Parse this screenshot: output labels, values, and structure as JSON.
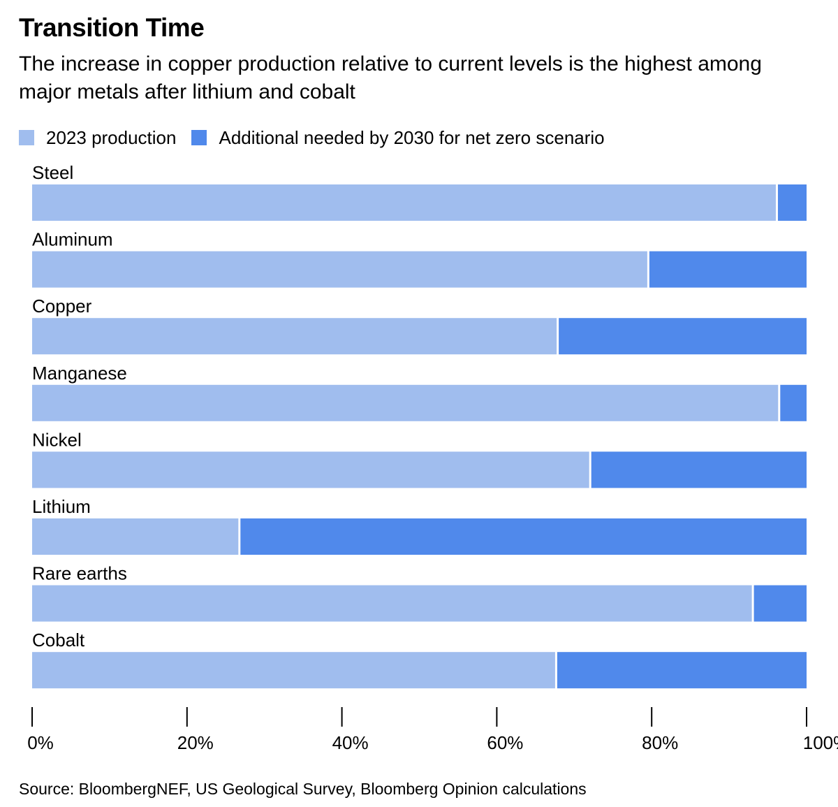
{
  "chart_data": {
    "type": "bar",
    "orientation": "horizontal",
    "stacked": true,
    "title": "Transition Time",
    "subtitle": "The increase in copper production relative to current levels is the highest among major metals after lithium and cobalt",
    "categories": [
      "Steel",
      "Aluminum",
      "Copper",
      "Manganese",
      "Nickel",
      "Lithium",
      "Rare earths",
      "Cobalt"
    ],
    "series": [
      {
        "name": "2023 production",
        "color": "#a0bdee",
        "values": [
          96.3,
          79.7,
          68.0,
          96.6,
          72.2,
          26.9,
          93.2,
          67.8
        ]
      },
      {
        "name": "Additional needed by 2030 for net zero scenario",
        "color": "#5089eb",
        "values": [
          3.7,
          20.3,
          32.0,
          3.4,
          27.8,
          73.1,
          6.8,
          32.2
        ]
      }
    ],
    "x_ticks": [
      "0%",
      "20%",
      "40%",
      "60%",
      "80%",
      "100%"
    ],
    "xlim": [
      0,
      100
    ],
    "grid": false,
    "legend_position": "top-left",
    "source": "Source: BloombergNEF, US Geological Survey, Bloomberg Opinion calculations"
  }
}
